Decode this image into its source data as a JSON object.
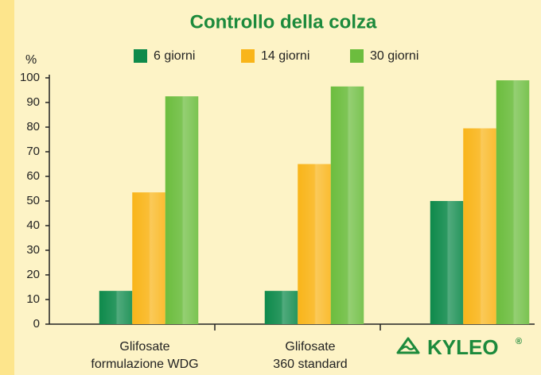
{
  "chart_data": {
    "type": "bar",
    "title": "Controllo della colza",
    "y_label": "%",
    "categories": [
      [
        "Glifosate",
        "formulazione WDG"
      ],
      [
        "Glifosate",
        "360 standard"
      ],
      [
        "KYLEO"
      ]
    ],
    "logo_mark": "®",
    "series": [
      {
        "name": "6 giorni",
        "color": "#0e8a4b",
        "values": [
          13.5,
          13.5,
          50
        ]
      },
      {
        "name": "14 giorni",
        "color": "#f9b51a",
        "values": [
          53.5,
          65,
          79.5
        ]
      },
      {
        "name": "30 giorni",
        "color": "#6cbd3e",
        "values": [
          92.5,
          96.5,
          99
        ]
      }
    ],
    "ylim": [
      0,
      100
    ],
    "yticks": [
      0,
      10,
      20,
      30,
      40,
      50,
      60,
      70,
      80,
      90,
      100
    ],
    "grid": false
  }
}
